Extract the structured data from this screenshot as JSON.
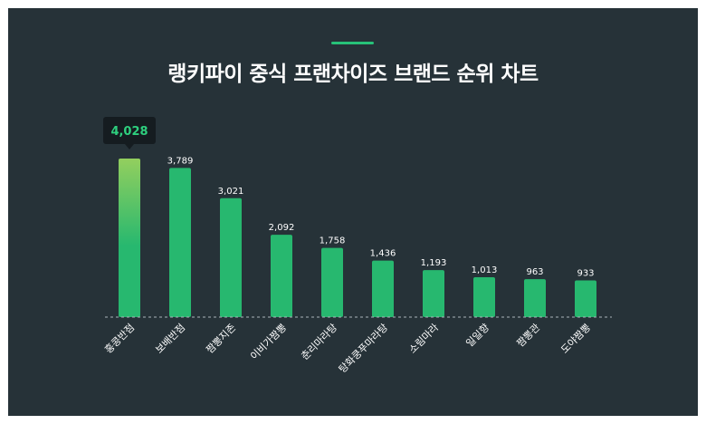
{
  "title": "랭키파이 중식 프랜차이즈 브랜드 순위 차트",
  "colors": {
    "background": "#263238",
    "bar": "#27b86f",
    "bar_top_highlight": "#93cf5e",
    "accent": "#27c279",
    "tooltip_bg": "#151c20",
    "tooltip_text": "#2ecf7e"
  },
  "chart_data": {
    "type": "bar",
    "categories": [
      "홍콩반점",
      "보배반점",
      "짬뽕지존",
      "이비가짬뽕",
      "춘리마라탕",
      "탕화쿵푸마라탕",
      "소림마라",
      "일일향",
      "짬뽕관",
      "도야짬뽕"
    ],
    "values": [
      4028,
      3789,
      3021,
      2092,
      1758,
      1436,
      1193,
      1013,
      963,
      933
    ],
    "value_labels": [
      "4,028",
      "3,789",
      "3,021",
      "2,092",
      "1,758",
      "1,436",
      "1,193",
      "1,013",
      "963",
      "933"
    ],
    "highlight": {
      "index": 0,
      "label": "4,028"
    },
    "ylim": [
      0,
      4028
    ],
    "grid": false,
    "baseline": "dashed"
  }
}
